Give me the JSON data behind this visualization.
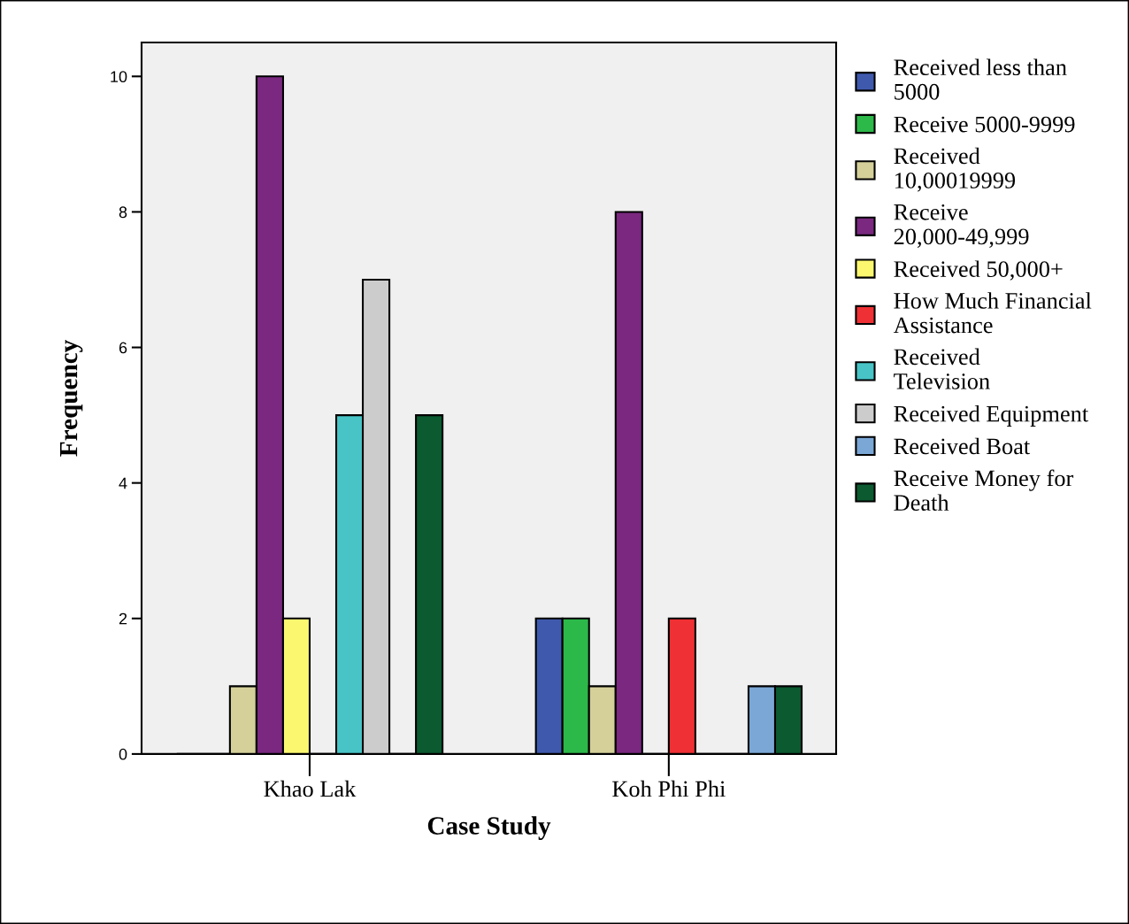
{
  "chart_data": {
    "type": "bar",
    "xlabel": "Case Study",
    "ylabel": "Frequency",
    "categories": [
      "Khao Lak",
      "Koh Phi Phi"
    ],
    "series": [
      {
        "name": "Received less than 5000",
        "color": "#3f5aad",
        "values": [
          0,
          2
        ]
      },
      {
        "name": "Receive 5000-9999",
        "color": "#2db84a",
        "values": [
          0,
          2
        ]
      },
      {
        "name": "Received 10,00019999",
        "color": "#d5d09a",
        "values": [
          1,
          1
        ]
      },
      {
        "name": "Receive 20,000-49,999",
        "color": "#7a2880",
        "values": [
          10,
          8
        ]
      },
      {
        "name": "Received 50,000+",
        "color": "#fbf870",
        "values": [
          2,
          0
        ]
      },
      {
        "name": "How Much Financial Assistance",
        "color": "#ef3034",
        "values": [
          0,
          2
        ]
      },
      {
        "name": "Received Television",
        "color": "#48c4c6",
        "values": [
          5,
          0
        ]
      },
      {
        "name": "Received Equipment",
        "color": "#cccccc",
        "values": [
          7,
          0
        ]
      },
      {
        "name": "Received Boat",
        "color": "#7aa7d6",
        "values": [
          0,
          1
        ]
      },
      {
        "name": "Receive Money for Death",
        "color": "#0b5a30",
        "values": [
          5,
          1
        ]
      }
    ],
    "ylim": [
      0,
      10.5
    ],
    "yticks": [
      0,
      2,
      4,
      6,
      8,
      10
    ],
    "grid": false,
    "legend": "right"
  }
}
